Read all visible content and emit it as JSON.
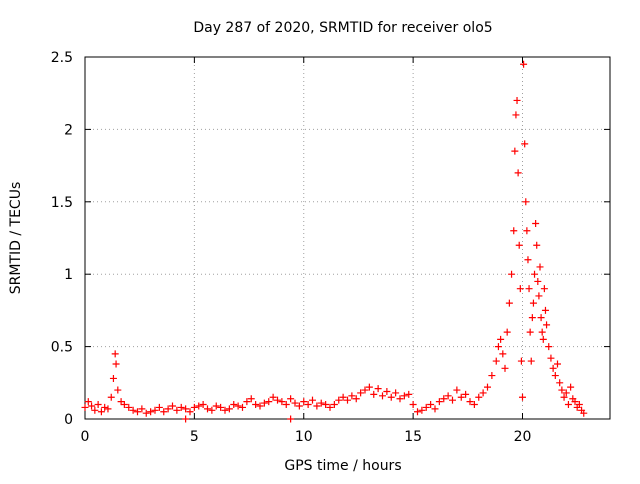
{
  "chart_data": {
    "type": "scatter",
    "title": "Day 287 of 2020, SRMTID for receiver olo5",
    "xlabel": "GPS time / hours",
    "ylabel": "SRMTID / TECUs",
    "xlim": [
      0,
      24
    ],
    "ylim": [
      0,
      2.5
    ],
    "xticks": [
      0,
      5,
      10,
      15,
      20
    ],
    "xtick_labels": [
      "0",
      "5",
      "10",
      "15",
      "20"
    ],
    "yticks": [
      0,
      0.5,
      1,
      1.5,
      2,
      2.5
    ],
    "ytick_labels": [
      "0",
      "0.5",
      "1",
      "1.5",
      "2",
      "2.5"
    ],
    "grid": true,
    "marker": "+",
    "series": [
      {
        "name": "SRMTID",
        "color": "#ff0000",
        "x": [
          0.0,
          0.15,
          0.3,
          0.45,
          0.6,
          0.75,
          0.9,
          1.05,
          1.2,
          1.3,
          1.38,
          1.42,
          1.5,
          1.65,
          1.8,
          2.0,
          2.2,
          2.4,
          2.6,
          2.8,
          3.0,
          3.2,
          3.4,
          3.6,
          3.8,
          4.0,
          4.2,
          4.4,
          4.6,
          4.8,
          5.0,
          5.2,
          5.4,
          5.6,
          5.8,
          6.0,
          6.2,
          6.4,
          6.6,
          6.8,
          7.0,
          7.2,
          7.4,
          7.6,
          7.8,
          8.0,
          8.2,
          8.4,
          8.6,
          8.8,
          9.0,
          9.2,
          9.4,
          9.6,
          9.8,
          10.0,
          10.2,
          10.4,
          10.6,
          10.8,
          11.0,
          11.2,
          11.4,
          11.6,
          11.8,
          12.0,
          12.2,
          12.4,
          12.6,
          12.8,
          13.0,
          13.2,
          13.4,
          13.6,
          13.8,
          14.0,
          14.2,
          14.4,
          14.6,
          14.8,
          15.0,
          15.2,
          15.4,
          15.6,
          15.8,
          16.0,
          16.2,
          16.4,
          16.6,
          16.8,
          17.0,
          17.2,
          17.4,
          17.6,
          17.8,
          18.0,
          18.2,
          18.4,
          18.6,
          18.8,
          18.9,
          19.0,
          19.1,
          19.2,
          19.3,
          19.4,
          19.5,
          19.6,
          19.65,
          19.7,
          19.75,
          19.8,
          19.85,
          19.9,
          19.95,
          20.0,
          20.05,
          20.1,
          20.15,
          20.2,
          20.25,
          20.3,
          20.35,
          20.4,
          20.45,
          20.5,
          20.55,
          20.6,
          20.65,
          20.7,
          20.75,
          20.8,
          20.85,
          20.9,
          20.95,
          21.0,
          21.05,
          21.1,
          21.2,
          21.3,
          21.4,
          21.5,
          21.6,
          21.7,
          21.8,
          21.9,
          22.0,
          22.1,
          22.2,
          22.3,
          22.4,
          22.5,
          22.6,
          22.7,
          22.8,
          4.6,
          9.4
        ],
        "y": [
          0.08,
          0.12,
          0.09,
          0.06,
          0.1,
          0.05,
          0.08,
          0.07,
          0.15,
          0.28,
          0.45,
          0.38,
          0.2,
          0.12,
          0.1,
          0.08,
          0.06,
          0.05,
          0.07,
          0.04,
          0.05,
          0.06,
          0.08,
          0.05,
          0.07,
          0.09,
          0.06,
          0.08,
          0.07,
          0.05,
          0.08,
          0.09,
          0.1,
          0.07,
          0.06,
          0.09,
          0.08,
          0.06,
          0.07,
          0.1,
          0.09,
          0.08,
          0.12,
          0.14,
          0.1,
          0.09,
          0.11,
          0.12,
          0.15,
          0.13,
          0.12,
          0.1,
          0.14,
          0.11,
          0.09,
          0.12,
          0.1,
          0.13,
          0.09,
          0.11,
          0.1,
          0.08,
          0.1,
          0.13,
          0.15,
          0.13,
          0.16,
          0.14,
          0.18,
          0.2,
          0.22,
          0.17,
          0.21,
          0.16,
          0.19,
          0.15,
          0.18,
          0.14,
          0.16,
          0.17,
          0.1,
          0.05,
          0.06,
          0.08,
          0.1,
          0.07,
          0.12,
          0.14,
          0.16,
          0.13,
          0.2,
          0.15,
          0.17,
          0.12,
          0.1,
          0.15,
          0.18,
          0.22,
          0.3,
          0.4,
          0.5,
          0.55,
          0.45,
          0.35,
          0.6,
          0.8,
          1.0,
          1.3,
          1.85,
          2.1,
          2.2,
          1.7,
          1.2,
          0.9,
          0.4,
          0.15,
          2.45,
          1.9,
          1.5,
          1.3,
          1.1,
          0.9,
          0.6,
          0.4,
          0.7,
          0.8,
          1.0,
          1.35,
          1.2,
          0.95,
          0.85,
          1.05,
          0.7,
          0.6,
          0.55,
          0.9,
          0.75,
          0.65,
          0.5,
          0.42,
          0.35,
          0.3,
          0.38,
          0.25,
          0.2,
          0.15,
          0.18,
          0.1,
          0.22,
          0.14,
          0.12,
          0.08,
          0.1,
          0.06,
          0.04,
          0.0,
          0.0
        ]
      }
    ]
  }
}
